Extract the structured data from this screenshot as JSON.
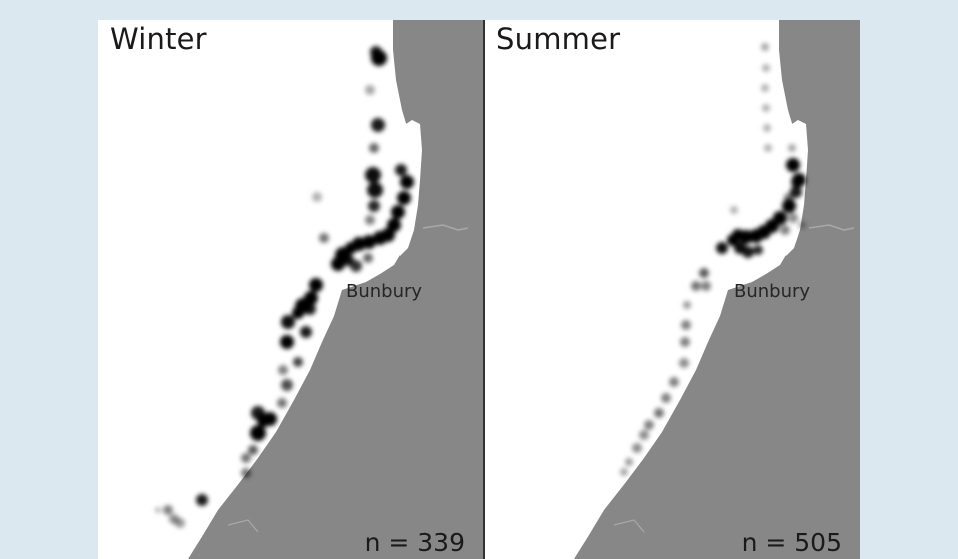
{
  "panels": [
    {
      "season": "Winter",
      "place": "Bunbury",
      "n_text": "n = 339"
    },
    {
      "season": "Summer",
      "place": "Bunbury",
      "n_text": "n = 505"
    }
  ],
  "colors": {
    "background": "#dbe8ef",
    "land": "#878787",
    "sea": "#ffffff",
    "sightings": "#000000"
  }
}
